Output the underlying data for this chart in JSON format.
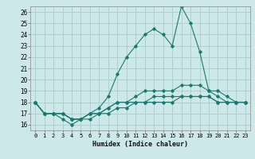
{
  "title": "",
  "xlabel": "Humidex (Indice chaleur)",
  "ylabel": "",
  "bg_color": "#cde8e8",
  "grid_color": "#afd0d0",
  "line_color": "#1a7a6e",
  "xlim": [
    -0.5,
    23.5
  ],
  "ylim": [
    15.5,
    26.5
  ],
  "yticks": [
    16,
    17,
    18,
    19,
    20,
    21,
    22,
    23,
    24,
    25,
    26
  ],
  "xticks": [
    0,
    1,
    2,
    3,
    4,
    5,
    6,
    7,
    8,
    9,
    10,
    11,
    12,
    13,
    14,
    15,
    16,
    17,
    18,
    19,
    20,
    21,
    22,
    23
  ],
  "series": [
    [
      18,
      17,
      17,
      17,
      16.5,
      16.5,
      17,
      17.5,
      18.5,
      20.5,
      22,
      23,
      24,
      24.5,
      24,
      23,
      26.5,
      25,
      22.5,
      19,
      19,
      18.5,
      18,
      18
    ],
    [
      18,
      17,
      17,
      17,
      16.5,
      16.5,
      17,
      17,
      17.5,
      18,
      18,
      18.5,
      19,
      19,
      19,
      19,
      19.5,
      19.5,
      19.5,
      19,
      18.5,
      18,
      18,
      18
    ],
    [
      18,
      17,
      17,
      16.5,
      16,
      16.5,
      16.5,
      17,
      17,
      17.5,
      17.5,
      18,
      18,
      18,
      18,
      18,
      18.5,
      18.5,
      18.5,
      18.5,
      18,
      18,
      18,
      18
    ],
    [
      18,
      17,
      17,
      17,
      16.5,
      16.5,
      17,
      17,
      17.5,
      18,
      18,
      18,
      18,
      18.5,
      18.5,
      18.5,
      18.5,
      18.5,
      18.5,
      18.5,
      18,
      18,
      18,
      18
    ]
  ]
}
